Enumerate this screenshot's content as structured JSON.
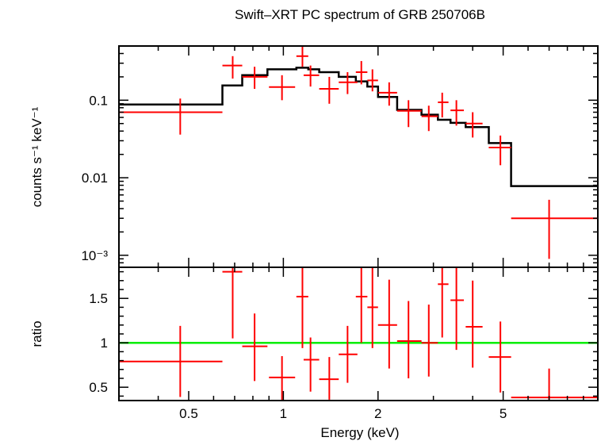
{
  "chart_data": {
    "title": "Swift–XRT PC spectrum of GRB 250706B",
    "xlabel": "Energy (keV)",
    "x_scale": "log",
    "xlim": [
      0.3,
      10
    ],
    "x_ticks": [
      0.5,
      1,
      2,
      5
    ],
    "x_tick_labels": [
      "0.5",
      "1",
      "2",
      "5"
    ],
    "colors": {
      "data": "#ff0000",
      "model": "#000000",
      "unity": "#00ee00"
    },
    "panels": [
      {
        "type": "scatter",
        "name": "spectrum",
        "ylabel": "counts s⁻¹ keV⁻¹",
        "y_scale": "log",
        "ylim": [
          0.0007,
          0.5
        ],
        "y_ticks": [
          0.001,
          0.01,
          0.1
        ],
        "y_tick_labels": [
          "10⁻³",
          "0.01",
          "0.1"
        ],
        "series": [
          {
            "kind": "data_with_errors",
            "points": [
              {
                "x": 0.47,
                "xlo": 0.3,
                "xhi": 0.64,
                "y": 0.07,
                "ylo": 0.036,
                "yhi": 0.105
              },
              {
                "x": 0.69,
                "xlo": 0.64,
                "xhi": 0.74,
                "y": 0.28,
                "ylo": 0.19,
                "yhi": 0.37
              },
              {
                "x": 0.81,
                "xlo": 0.74,
                "xhi": 0.89,
                "y": 0.2,
                "ylo": 0.14,
                "yhi": 0.27
              },
              {
                "x": 0.99,
                "xlo": 0.9,
                "xhi": 1.09,
                "y": 0.148,
                "ylo": 0.1,
                "yhi": 0.21
              },
              {
                "x": 1.15,
                "xlo": 1.1,
                "xhi": 1.2,
                "y": 0.37,
                "ylo": 0.27,
                "yhi": 0.5
              },
              {
                "x": 1.22,
                "xlo": 1.16,
                "xhi": 1.3,
                "y": 0.21,
                "ylo": 0.15,
                "yhi": 0.28
              },
              {
                "x": 1.4,
                "xlo": 1.3,
                "xhi": 1.5,
                "y": 0.14,
                "ylo": 0.09,
                "yhi": 0.2
              },
              {
                "x": 1.6,
                "xlo": 1.5,
                "xhi": 1.72,
                "y": 0.17,
                "ylo": 0.12,
                "yhi": 0.23
              },
              {
                "x": 1.77,
                "xlo": 1.7,
                "xhi": 1.85,
                "y": 0.23,
                "ylo": 0.16,
                "yhi": 0.32
              },
              {
                "x": 1.92,
                "xlo": 1.85,
                "xhi": 2.0,
                "y": 0.18,
                "ylo": 0.13,
                "yhi": 0.25
              },
              {
                "x": 2.17,
                "xlo": 2.0,
                "xhi": 2.3,
                "y": 0.125,
                "ylo": 0.085,
                "yhi": 0.17
              },
              {
                "x": 2.5,
                "xlo": 2.3,
                "xhi": 2.75,
                "y": 0.073,
                "ylo": 0.045,
                "yhi": 0.1
              },
              {
                "x": 2.9,
                "xlo": 2.75,
                "xhi": 3.1,
                "y": 0.062,
                "ylo": 0.04,
                "yhi": 0.085
              },
              {
                "x": 3.2,
                "xlo": 3.1,
                "xhi": 3.35,
                "y": 0.094,
                "ylo": 0.06,
                "yhi": 0.125
              },
              {
                "x": 3.55,
                "xlo": 3.4,
                "xhi": 3.75,
                "y": 0.074,
                "ylo": 0.047,
                "yhi": 0.1
              },
              {
                "x": 4.0,
                "xlo": 3.8,
                "xhi": 4.3,
                "y": 0.05,
                "ylo": 0.033,
                "yhi": 0.07
              },
              {
                "x": 4.9,
                "xlo": 4.5,
                "xhi": 5.3,
                "y": 0.0245,
                "ylo": 0.0145,
                "yhi": 0.035
              },
              {
                "x": 7.0,
                "xlo": 5.3,
                "xhi": 10.0,
                "y": 0.003,
                "ylo": 0.0009,
                "yhi": 0.0052
              }
            ]
          },
          {
            "kind": "model_step",
            "edges": [
              0.3,
              0.64,
              0.74,
              0.89,
              1.1,
              1.2,
              1.3,
              1.5,
              1.7,
              1.85,
              2.0,
              2.3,
              2.75,
              3.1,
              3.4,
              3.8,
              4.5,
              5.3,
              10.0
            ],
            "values": [
              0.088,
              0.155,
              0.21,
              0.25,
              0.262,
              0.25,
              0.23,
              0.2,
              0.175,
              0.15,
              0.11,
              0.075,
              0.065,
              0.056,
              0.051,
              0.045,
              0.028,
              0.0078
            ]
          }
        ]
      },
      {
        "type": "scatter",
        "name": "ratio",
        "ylabel": "ratio",
        "y_scale": "linear",
        "ylim": [
          0.35,
          1.85
        ],
        "y_ticks": [
          0.5,
          1,
          1.5
        ],
        "y_tick_labels": [
          "0.5",
          "1",
          "1.5"
        ],
        "reference_line": 1,
        "series": [
          {
            "kind": "data_with_errors",
            "points": [
              {
                "x": 0.47,
                "xlo": 0.3,
                "xhi": 0.64,
                "y": 0.79,
                "ylo": 0.39,
                "yhi": 1.19
              },
              {
                "x": 0.69,
                "xlo": 0.64,
                "xhi": 0.74,
                "y": 1.8,
                "ylo": 1.05,
                "yhi": 1.85
              },
              {
                "x": 0.81,
                "xlo": 0.74,
                "xhi": 0.89,
                "y": 0.96,
                "ylo": 0.57,
                "yhi": 1.33
              },
              {
                "x": 0.99,
                "xlo": 0.9,
                "xhi": 1.09,
                "y": 0.61,
                "ylo": 0.35,
                "yhi": 0.85
              },
              {
                "x": 1.15,
                "xlo": 1.1,
                "xhi": 1.2,
                "y": 1.52,
                "ylo": 0.94,
                "yhi": 1.85
              },
              {
                "x": 1.22,
                "xlo": 1.16,
                "xhi": 1.3,
                "y": 0.81,
                "ylo": 0.45,
                "yhi": 1.06
              },
              {
                "x": 1.4,
                "xlo": 1.3,
                "xhi": 1.5,
                "y": 0.59,
                "ylo": 0.36,
                "yhi": 0.84
              },
              {
                "x": 1.6,
                "xlo": 1.5,
                "xhi": 1.72,
                "y": 0.87,
                "ylo": 0.55,
                "yhi": 1.19
              },
              {
                "x": 1.77,
                "xlo": 1.7,
                "xhi": 1.85,
                "y": 1.52,
                "ylo": 1.0,
                "yhi": 1.85
              },
              {
                "x": 1.92,
                "xlo": 1.85,
                "xhi": 2.0,
                "y": 1.4,
                "ylo": 0.94,
                "yhi": 1.85
              },
              {
                "x": 2.17,
                "xlo": 2.0,
                "xhi": 2.3,
                "y": 1.2,
                "ylo": 0.71,
                "yhi": 1.71
              },
              {
                "x": 2.5,
                "xlo": 2.3,
                "xhi": 2.75,
                "y": 1.02,
                "ylo": 0.6,
                "yhi": 1.47
              },
              {
                "x": 2.9,
                "xlo": 2.75,
                "xhi": 3.1,
                "y": 1.0,
                "ylo": 0.62,
                "yhi": 1.43
              },
              {
                "x": 3.2,
                "xlo": 3.1,
                "xhi": 3.35,
                "y": 1.66,
                "ylo": 1.06,
                "yhi": 1.85
              },
              {
                "x": 3.55,
                "xlo": 3.4,
                "xhi": 3.75,
                "y": 1.48,
                "ylo": 0.92,
                "yhi": 1.85
              },
              {
                "x": 4.0,
                "xlo": 3.8,
                "xhi": 4.3,
                "y": 1.18,
                "ylo": 0.72,
                "yhi": 1.7
              },
              {
                "x": 4.9,
                "xlo": 4.5,
                "xhi": 5.3,
                "y": 0.84,
                "ylo": 0.44,
                "yhi": 1.24
              },
              {
                "x": 7.0,
                "xlo": 5.3,
                "xhi": 10.0,
                "y": 0.385,
                "ylo": 0.35,
                "yhi": 0.71
              }
            ]
          }
        ]
      }
    ]
  }
}
